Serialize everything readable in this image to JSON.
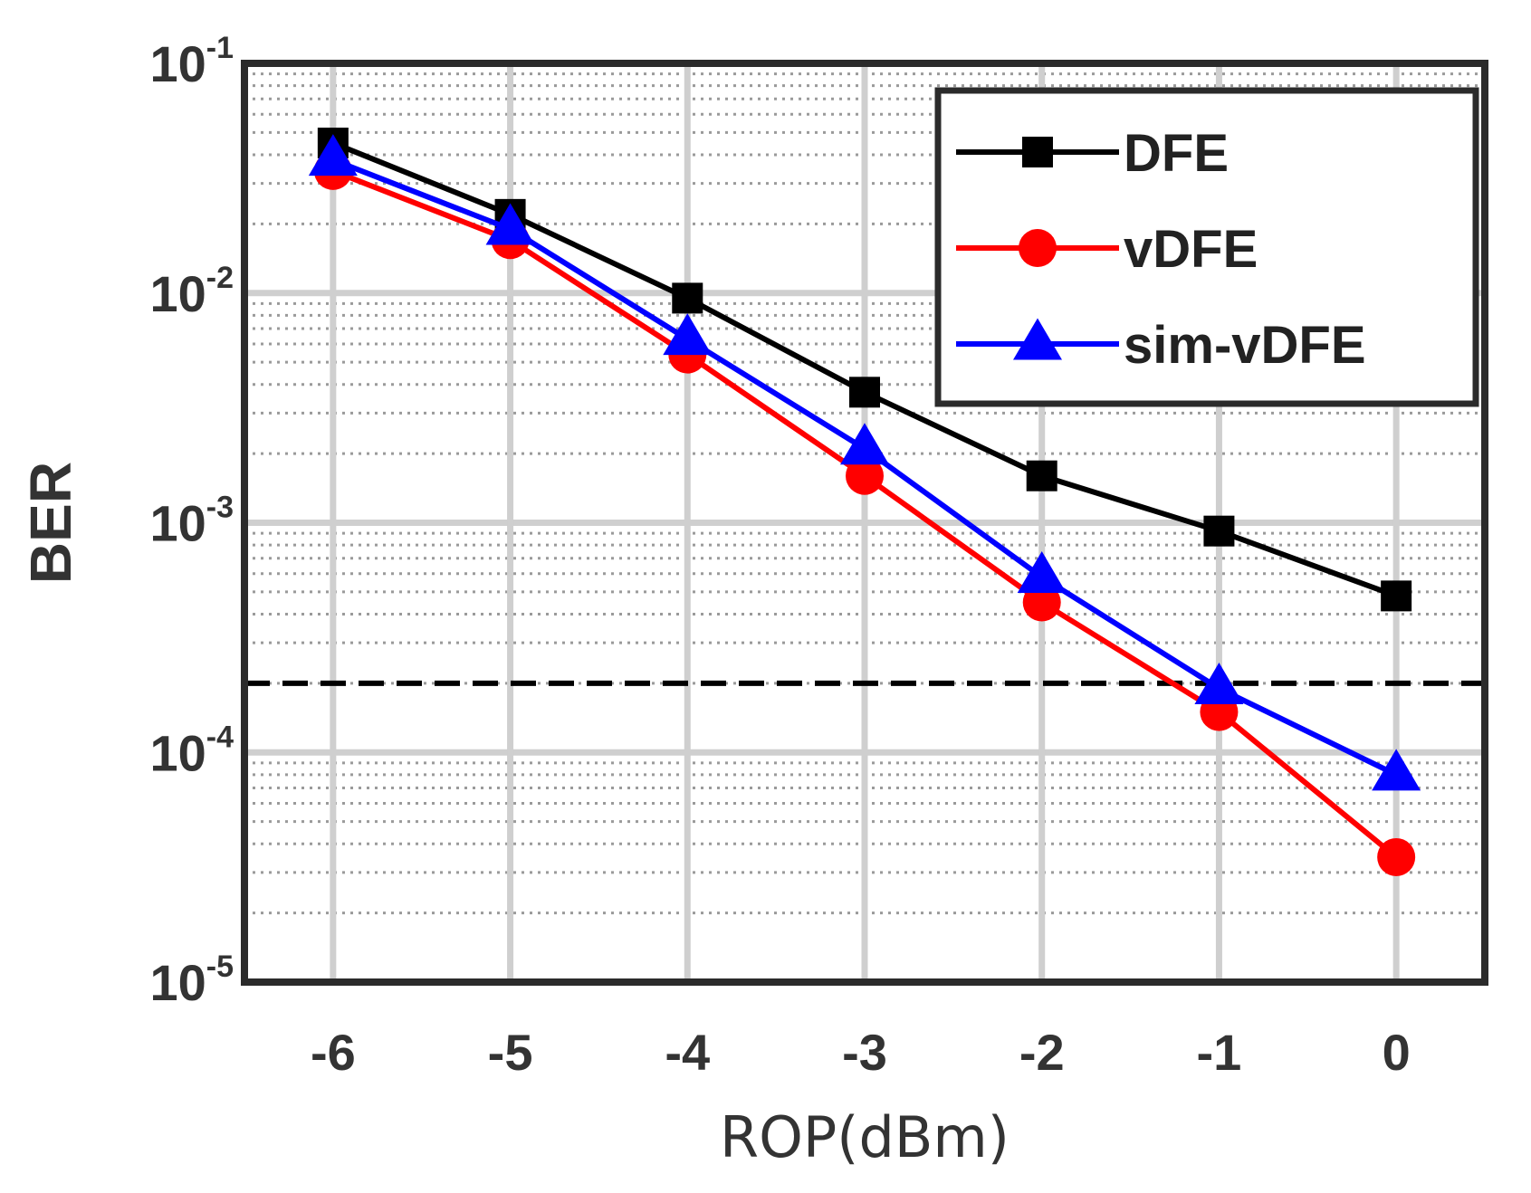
{
  "chart_data": {
    "type": "line",
    "xlabel": "ROP(dBm)",
    "ylabel": "BER",
    "x": [
      -6,
      -5,
      -4,
      -3,
      -2,
      -1,
      0
    ],
    "xlim": [
      -6.5,
      0.5
    ],
    "ylim": [
      1e-05,
      0.1
    ],
    "yscale": "log",
    "x_tick_labels": [
      "-6",
      "-5",
      "-4",
      "-3",
      "-2",
      "-1",
      "0"
    ],
    "y_ticks": [
      {
        "base": "10",
        "exp": "-1",
        "value": 0.1
      },
      {
        "base": "10",
        "exp": "-2",
        "value": 0.01
      },
      {
        "base": "10",
        "exp": "-3",
        "value": 0.001
      },
      {
        "base": "10",
        "exp": "-4",
        "value": 0.0001
      },
      {
        "base": "10",
        "exp": "-5",
        "value": 1e-05
      }
    ],
    "grid": true,
    "legend_position": "top-right",
    "series": [
      {
        "name": "DFE",
        "color": "#000000",
        "marker": "square",
        "values": [
          0.045,
          0.022,
          0.0095,
          0.0037,
          0.0016,
          0.00092,
          0.00048
        ]
      },
      {
        "name": "vDFE",
        "color": "#ff0000",
        "marker": "circle",
        "values": [
          0.034,
          0.017,
          0.0054,
          0.0016,
          0.00045,
          0.00015,
          3.5e-05
        ]
      },
      {
        "name": "sim-vDFE",
        "color": "#0000ff",
        "marker": "triangle",
        "values": [
          0.038,
          0.019,
          0.0063,
          0.0021,
          0.00058,
          0.00019,
          8e-05
        ]
      }
    ],
    "threshold": {
      "value": 0.0002,
      "style": "dashed",
      "color": "#000000"
    }
  }
}
